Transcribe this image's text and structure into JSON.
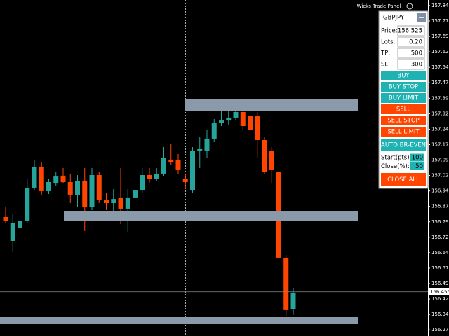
{
  "chart_data": {
    "type": "candlestick",
    "up_color": "#26a69a",
    "down_color": "#ff4500",
    "ylim": [
      156.24,
      157.872
    ],
    "yticks": [
      157.845,
      {
        "value": 157.77,
        "label": "157.770"
      },
      157.695,
      {
        "value": 157.62,
        "label": "157.620"
      },
      157.545,
      {
        "value": 157.47,
        "label": "157.470"
      },
      157.395,
      {
        "value": 157.32,
        "label": "157.320"
      },
      157.245,
      {
        "value": 157.17,
        "label": "157.170"
      },
      157.095,
      {
        "value": 157.02,
        "label": "157.020"
      },
      156.945,
      {
        "value": 156.87,
        "label": "156.870"
      },
      156.795,
      {
        "value": 156.72,
        "label": "156.720"
      },
      156.645,
      {
        "value": 156.57,
        "label": "156.570"
      },
      156.495,
      {
        "value": 156.42,
        "label": "156.420"
      },
      156.345,
      {
        "value": 156.27,
        "label": "156.270"
      }
    ],
    "last_price": 156.455,
    "candles": [
      {
        "open": 156.818,
        "high": 156.866,
        "low": 156.791,
        "close": 156.798
      },
      {
        "open": 156.699,
        "high": 156.835,
        "low": 156.648,
        "close": 156.791
      },
      {
        "open": 156.764,
        "high": 156.852,
        "low": 156.75,
        "close": 156.801
      },
      {
        "open": 156.801,
        "high": 157.005,
        "low": 156.791,
        "close": 156.961
      },
      {
        "open": 156.961,
        "high": 157.097,
        "low": 156.947,
        "close": 157.063
      },
      {
        "open": 157.063,
        "high": 157.083,
        "low": 156.927,
        "close": 156.944
      },
      {
        "open": 156.944,
        "high": 157.005,
        "low": 156.93,
        "close": 156.988
      },
      {
        "open": 156.981,
        "high": 157.039,
        "low": 156.971,
        "close": 157.015
      },
      {
        "open": 157.019,
        "high": 157.056,
        "low": 156.981,
        "close": 156.988
      },
      {
        "open": 156.988,
        "high": 157.029,
        "low": 156.886,
        "close": 156.927
      },
      {
        "open": 156.927,
        "high": 157.022,
        "low": 156.866,
        "close": 156.995
      },
      {
        "open": 156.995,
        "high": 157.056,
        "low": 156.75,
        "close": 156.866
      },
      {
        "open": 156.866,
        "high": 157.056,
        "low": 156.852,
        "close": 157.022
      },
      {
        "open": 157.022,
        "high": 157.039,
        "low": 156.886,
        "close": 156.903
      },
      {
        "open": 156.903,
        "high": 156.937,
        "low": 156.852,
        "close": 156.886
      },
      {
        "open": 156.886,
        "high": 156.954,
        "low": 156.818,
        "close": 156.906
      },
      {
        "open": 156.91,
        "high": 157.056,
        "low": 156.784,
        "close": 156.859
      },
      {
        "open": 156.859,
        "high": 156.954,
        "low": 156.743,
        "close": 156.91
      },
      {
        "open": 156.91,
        "high": 156.981,
        "low": 156.893,
        "close": 156.947
      },
      {
        "open": 156.947,
        "high": 157.056,
        "low": 156.934,
        "close": 157.022
      },
      {
        "open": 157.022,
        "high": 157.056,
        "low": 156.981,
        "close": 157.002
      },
      {
        "open": 157.005,
        "high": 157.056,
        "low": 156.995,
        "close": 157.029
      },
      {
        "open": 157.029,
        "high": 157.158,
        "low": 157.015,
        "close": 157.104
      },
      {
        "open": 157.097,
        "high": 157.175,
        "low": 157.07,
        "close": 157.083
      },
      {
        "open": 157.097,
        "high": 157.124,
        "low": 157.029,
        "close": 157.046
      },
      {
        "open": 157.005,
        "high": 157.029,
        "low": 156.954,
        "close": 156.988
      },
      {
        "open": 156.947,
        "high": 157.158,
        "low": 156.937,
        "close": 157.141
      },
      {
        "open": 157.138,
        "high": 157.209,
        "low": 157.056,
        "close": 157.148
      },
      {
        "open": 157.138,
        "high": 157.243,
        "low": 157.107,
        "close": 157.199
      },
      {
        "open": 157.199,
        "high": 157.294,
        "low": 157.182,
        "close": 157.277
      },
      {
        "open": 157.277,
        "high": 157.335,
        "low": 157.26,
        "close": 157.287
      },
      {
        "open": 157.287,
        "high": 157.335,
        "low": 157.267,
        "close": 157.301
      },
      {
        "open": 157.301,
        "high": 157.362,
        "low": 157.287,
        "close": 157.328
      },
      {
        "open": 157.328,
        "high": 157.345,
        "low": 157.243,
        "close": 157.26
      },
      {
        "open": 157.311,
        "high": 157.328,
        "low": 157.226,
        "close": 157.243
      },
      {
        "open": 157.311,
        "high": 157.328,
        "low": 157.107,
        "close": 157.192
      },
      {
        "open": 157.192,
        "high": 157.209,
        "low": 157.029,
        "close": 157.039
      },
      {
        "open": 157.141,
        "high": 157.158,
        "low": 156.981,
        "close": 157.046
      },
      {
        "open": 157.039,
        "high": 157.056,
        "low": 156.614,
        "close": 156.621
      },
      {
        "open": 156.621,
        "high": 156.631,
        "low": 156.335,
        "close": 156.366
      },
      {
        "open": 156.369,
        "high": 156.471,
        "low": 156.342,
        "close": 156.451
      }
    ]
  },
  "panel": {
    "title": "Wicks Trade Panel",
    "symbol": "GBPJPY",
    "fields": [
      {
        "label": "Price:",
        "value": "156.525"
      },
      {
        "label": "Lots:",
        "value": "0.20"
      },
      {
        "label": "TP:",
        "value": "500"
      },
      {
        "label": "SL:",
        "value": "300"
      }
    ],
    "buttons": [
      "BUY",
      "BUY STOP",
      "BUY LIMIT",
      "SELL",
      "SELL STOP",
      "SELL LIMIT",
      "AUTO BR-EVEN"
    ],
    "breakeven": [
      {
        "label": "Start(pts):",
        "value": "100"
      },
      {
        "label": "Close(%):",
        "value": "50"
      }
    ],
    "close_all": "CLOSE ALL"
  }
}
